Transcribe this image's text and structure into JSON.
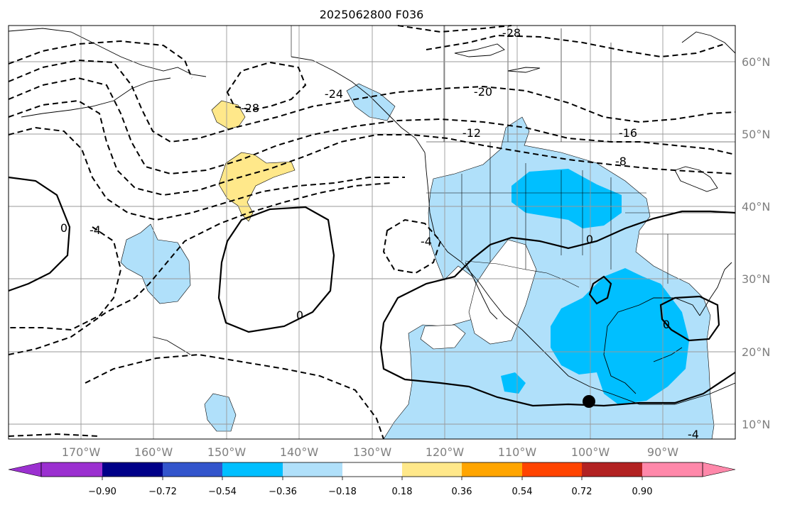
{
  "title": "2025062800 F036",
  "map": {
    "projection": "PlateCarree",
    "lon_range": [
      -180,
      -80
    ],
    "lat_range": [
      8,
      65
    ],
    "gridlines": true,
    "lon_labels": [
      "170°W",
      "160°W",
      "150°W",
      "140°W",
      "130°W",
      "120°W",
      "110°W",
      "100°W",
      "90°W"
    ],
    "lat_labels": [
      "60°N",
      "50°N",
      "40°N",
      "30°N",
      "20°N",
      "10°N"
    ],
    "contour_labels": [
      "-28",
      "-28",
      "-20",
      "-24",
      "-16",
      "-12",
      "-8",
      "-4",
      "-4",
      "-4",
      "0",
      "0",
      "0",
      "0"
    ],
    "marker": {
      "name": "storm-center",
      "lon": -100,
      "lat": 13,
      "color": "#000000"
    }
  },
  "colorbar": {
    "ticks": [
      "−0.90",
      "−0.72",
      "−0.54",
      "−0.36",
      "−0.18",
      "0.18",
      "0.36",
      "0.54",
      "0.72",
      "0.90"
    ],
    "colors": [
      "#9b30d0",
      "#000088",
      "#3355cc",
      "#00bfff",
      "#b0e0fa",
      "#ffffff",
      "#ffe88a",
      "#ffa500",
      "#ff4400",
      "#b22222",
      "#ff88aa"
    ],
    "extend": "both"
  },
  "colors": {
    "neg_light": "#b0e0fa",
    "neg_mid": "#00bfff",
    "pos_light": "#ffe88a"
  }
}
